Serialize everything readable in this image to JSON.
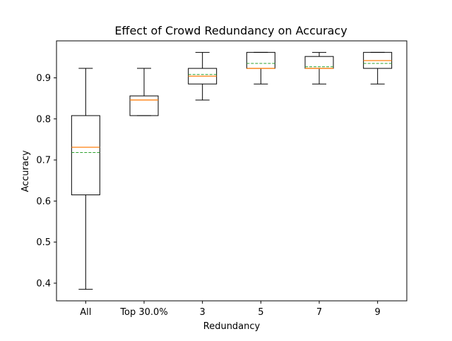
{
  "chart_data": {
    "type": "box",
    "title": "Effect of Crowd Redundancy on Accuracy",
    "xlabel": "Redundancy",
    "ylabel": "Accuracy",
    "ylim": [
      0.357,
      0.99
    ],
    "yticks": [
      0.4,
      0.5,
      0.6,
      0.7,
      0.8,
      0.9
    ],
    "ytick_labels": [
      "0.4",
      "0.5",
      "0.6",
      "0.7",
      "0.8",
      "0.9"
    ],
    "categories": [
      "All",
      "Top 30.0%",
      "3",
      "5",
      "7",
      "9"
    ],
    "boxes": [
      {
        "category": "All",
        "whisker_low": 0.385,
        "q1": 0.615,
        "median": 0.731,
        "mean": 0.718,
        "q3": 0.808,
        "whisker_high": 0.923
      },
      {
        "category": "Top 30.0%",
        "whisker_low": 0.808,
        "q1": 0.808,
        "median": 0.846,
        "mean": 0.846,
        "q3": 0.856,
        "whisker_high": 0.923
      },
      {
        "category": "3",
        "whisker_low": 0.846,
        "q1": 0.885,
        "median": 0.904,
        "mean": 0.908,
        "q3": 0.923,
        "whisker_high": 0.962
      },
      {
        "category": "5",
        "whisker_low": 0.885,
        "q1": 0.923,
        "median": 0.923,
        "mean": 0.935,
        "q3": 0.962,
        "whisker_high": 0.962
      },
      {
        "category": "7",
        "whisker_low": 0.885,
        "q1": 0.923,
        "median": 0.923,
        "mean": 0.927,
        "q3": 0.952,
        "whisker_high": 0.962
      },
      {
        "category": "9",
        "whisker_low": 0.885,
        "q1": 0.923,
        "median": 0.942,
        "mean": 0.935,
        "q3": 0.962,
        "whisker_high": 0.962
      }
    ],
    "colors": {
      "box": "#000000",
      "median": "#ff7f0e",
      "mean": "#2ca02c",
      "background": "#ffffff"
    },
    "grid": false,
    "legend": "none"
  }
}
